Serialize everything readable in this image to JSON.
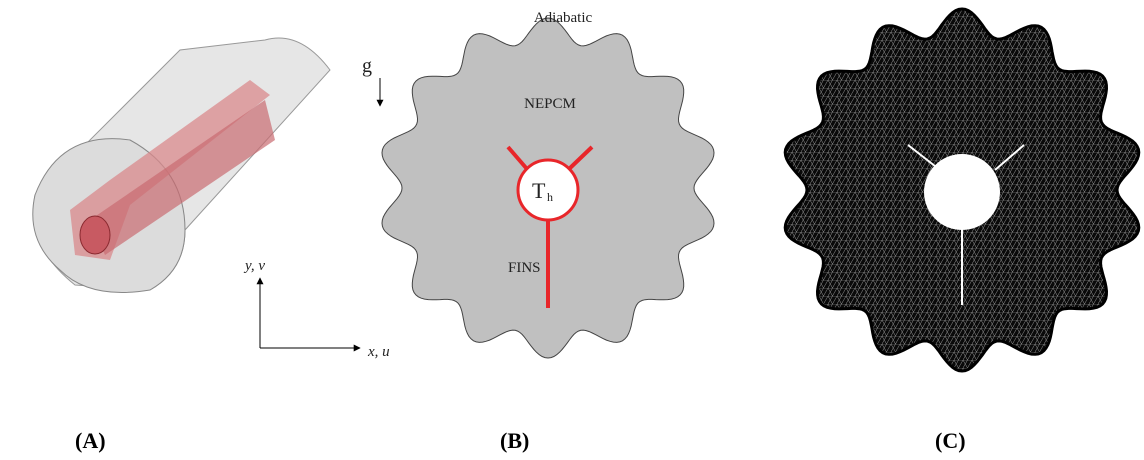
{
  "panel_a": {
    "y_axis_label": "y, v",
    "x_axis_label": "x, u",
    "caption": "(A)"
  },
  "panel_b": {
    "boundary_label": "Adiabatic",
    "gravity_label": "g",
    "domain_label": "NEPCM",
    "heater_label": "T",
    "heater_subscript": "h",
    "fins_label": "FINS",
    "caption": "(B)"
  },
  "panel_c": {
    "caption": "(C)"
  }
}
